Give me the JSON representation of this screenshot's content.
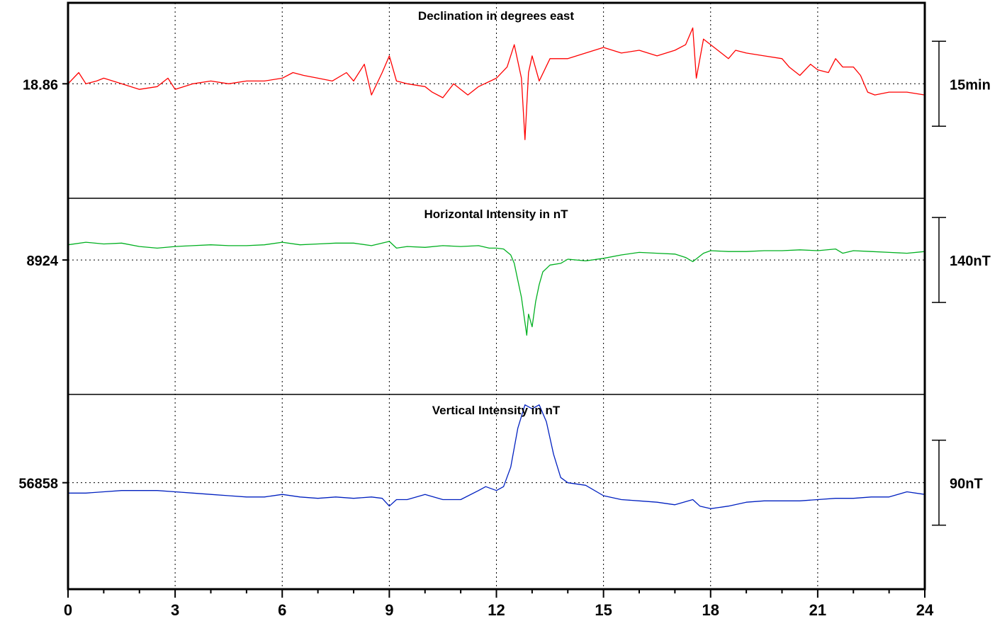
{
  "chart_data": {
    "type": "line",
    "x_ticks": [
      "0",
      "3",
      "6",
      "9",
      "12",
      "15",
      "18",
      "21",
      "24"
    ],
    "xlim": [
      0,
      24
    ],
    "grid": true,
    "panels": [
      {
        "title": "Declination in degrees east",
        "baseline_label": "18.86",
        "scale_label": "15min",
        "color": "#ff0000",
        "baseline_value": 18.86,
        "ylim": [
          18.45,
          19.16
        ],
        "points": [
          [
            0.0,
            18.86
          ],
          [
            0.3,
            18.9
          ],
          [
            0.5,
            18.86
          ],
          [
            0.8,
            18.87
          ],
          [
            1.0,
            18.88
          ],
          [
            1.5,
            18.86
          ],
          [
            2.0,
            18.84
          ],
          [
            2.5,
            18.85
          ],
          [
            2.8,
            18.88
          ],
          [
            3.0,
            18.84
          ],
          [
            3.5,
            18.86
          ],
          [
            4.0,
            18.87
          ],
          [
            4.5,
            18.86
          ],
          [
            5.0,
            18.87
          ],
          [
            5.5,
            18.87
          ],
          [
            6.0,
            18.88
          ],
          [
            6.3,
            18.9
          ],
          [
            6.6,
            18.89
          ],
          [
            7.0,
            18.88
          ],
          [
            7.4,
            18.87
          ],
          [
            7.8,
            18.9
          ],
          [
            8.0,
            18.87
          ],
          [
            8.3,
            18.93
          ],
          [
            8.5,
            18.82
          ],
          [
            8.8,
            18.9
          ],
          [
            9.0,
            18.96
          ],
          [
            9.2,
            18.87
          ],
          [
            9.5,
            18.86
          ],
          [
            10.0,
            18.85
          ],
          [
            10.2,
            18.83
          ],
          [
            10.5,
            18.81
          ],
          [
            10.8,
            18.86
          ],
          [
            11.0,
            18.84
          ],
          [
            11.2,
            18.82
          ],
          [
            11.5,
            18.85
          ],
          [
            12.0,
            18.88
          ],
          [
            12.3,
            18.92
          ],
          [
            12.5,
            19.0
          ],
          [
            12.7,
            18.88
          ],
          [
            12.8,
            18.66
          ],
          [
            12.9,
            18.9
          ],
          [
            13.0,
            18.96
          ],
          [
            13.2,
            18.87
          ],
          [
            13.5,
            18.95
          ],
          [
            14.0,
            18.95
          ],
          [
            14.5,
            18.97
          ],
          [
            15.0,
            18.99
          ],
          [
            15.5,
            18.97
          ],
          [
            16.0,
            18.98
          ],
          [
            16.5,
            18.96
          ],
          [
            17.0,
            18.98
          ],
          [
            17.3,
            19.0
          ],
          [
            17.5,
            19.06
          ],
          [
            17.6,
            18.88
          ],
          [
            17.8,
            19.02
          ],
          [
            18.0,
            19.0
          ],
          [
            18.3,
            18.97
          ],
          [
            18.5,
            18.95
          ],
          [
            18.7,
            18.98
          ],
          [
            19.0,
            18.97
          ],
          [
            19.5,
            18.96
          ],
          [
            20.0,
            18.95
          ],
          [
            20.2,
            18.92
          ],
          [
            20.5,
            18.89
          ],
          [
            20.8,
            18.93
          ],
          [
            21.0,
            18.91
          ],
          [
            21.3,
            18.9
          ],
          [
            21.5,
            18.95
          ],
          [
            21.7,
            18.92
          ],
          [
            22.0,
            18.92
          ],
          [
            22.2,
            18.89
          ],
          [
            22.4,
            18.83
          ],
          [
            22.6,
            18.82
          ],
          [
            23.0,
            18.83
          ],
          [
            23.5,
            18.83
          ],
          [
            24.0,
            18.82
          ]
        ]
      },
      {
        "title": "Horizontal Intensity in nT",
        "baseline_label": "8924",
        "scale_label": "140nT",
        "color": "#00b020",
        "baseline_value": 8924,
        "ylim": [
          8765,
          8997
        ],
        "points": [
          [
            0.0,
            8942
          ],
          [
            0.5,
            8945
          ],
          [
            1.0,
            8943
          ],
          [
            1.5,
            8944
          ],
          [
            2.0,
            8940
          ],
          [
            2.5,
            8938
          ],
          [
            3.0,
            8940
          ],
          [
            3.5,
            8941
          ],
          [
            4.0,
            8942
          ],
          [
            4.5,
            8941
          ],
          [
            5.0,
            8941
          ],
          [
            5.5,
            8942
          ],
          [
            6.0,
            8945
          ],
          [
            6.5,
            8942
          ],
          [
            7.0,
            8943
          ],
          [
            7.5,
            8944
          ],
          [
            8.0,
            8944
          ],
          [
            8.5,
            8941
          ],
          [
            9.0,
            8946
          ],
          [
            9.2,
            8938
          ],
          [
            9.5,
            8940
          ],
          [
            10.0,
            8939
          ],
          [
            10.5,
            8941
          ],
          [
            11.0,
            8940
          ],
          [
            11.5,
            8941
          ],
          [
            11.8,
            8938
          ],
          [
            12.0,
            8938
          ],
          [
            12.2,
            8937
          ],
          [
            12.4,
            8930
          ],
          [
            12.5,
            8920
          ],
          [
            12.6,
            8900
          ],
          [
            12.7,
            8880
          ],
          [
            12.8,
            8850
          ],
          [
            12.85,
            8835
          ],
          [
            12.9,
            8860
          ],
          [
            13.0,
            8845
          ],
          [
            13.1,
            8875
          ],
          [
            13.2,
            8895
          ],
          [
            13.3,
            8910
          ],
          [
            13.5,
            8918
          ],
          [
            13.8,
            8920
          ],
          [
            14.0,
            8925
          ],
          [
            14.5,
            8923
          ],
          [
            15.0,
            8926
          ],
          [
            15.5,
            8930
          ],
          [
            16.0,
            8933
          ],
          [
            16.5,
            8932
          ],
          [
            17.0,
            8931
          ],
          [
            17.3,
            8927
          ],
          [
            17.5,
            8922
          ],
          [
            17.8,
            8932
          ],
          [
            18.0,
            8935
          ],
          [
            18.5,
            8934
          ],
          [
            19.0,
            8934
          ],
          [
            19.5,
            8935
          ],
          [
            20.0,
            8935
          ],
          [
            20.5,
            8936
          ],
          [
            21.0,
            8935
          ],
          [
            21.5,
            8937
          ],
          [
            21.7,
            8932
          ],
          [
            22.0,
            8935
          ],
          [
            22.5,
            8934
          ],
          [
            23.0,
            8933
          ],
          [
            23.5,
            8932
          ],
          [
            24.0,
            8934
          ]
        ]
      },
      {
        "title": "Vertical Intensity in nT",
        "baseline_label": "56858",
        "scale_label": "90nT",
        "color": "#0020c0",
        "baseline_value": 56858,
        "ylim": [
          56776,
          56926
        ],
        "points": [
          [
            0.0,
            56850
          ],
          [
            0.5,
            56850
          ],
          [
            1.0,
            56851
          ],
          [
            1.5,
            56852
          ],
          [
            2.0,
            56852
          ],
          [
            2.5,
            56852
          ],
          [
            3.0,
            56851
          ],
          [
            3.5,
            56850
          ],
          [
            4.0,
            56849
          ],
          [
            4.5,
            56848
          ],
          [
            5.0,
            56847
          ],
          [
            5.5,
            56847
          ],
          [
            6.0,
            56849
          ],
          [
            6.5,
            56847
          ],
          [
            7.0,
            56846
          ],
          [
            7.5,
            56847
          ],
          [
            8.0,
            56846
          ],
          [
            8.5,
            56847
          ],
          [
            8.8,
            56846
          ],
          [
            9.0,
            56840
          ],
          [
            9.2,
            56845
          ],
          [
            9.5,
            56845
          ],
          [
            10.0,
            56849
          ],
          [
            10.5,
            56845
          ],
          [
            11.0,
            56845
          ],
          [
            11.5,
            56852
          ],
          [
            11.7,
            56855
          ],
          [
            12.0,
            56852
          ],
          [
            12.2,
            56855
          ],
          [
            12.4,
            56870
          ],
          [
            12.6,
            56900
          ],
          [
            12.8,
            56918
          ],
          [
            13.0,
            56915
          ],
          [
            13.2,
            56918
          ],
          [
            13.4,
            56905
          ],
          [
            13.6,
            56880
          ],
          [
            13.8,
            56862
          ],
          [
            14.0,
            56858
          ],
          [
            14.5,
            56856
          ],
          [
            15.0,
            56848
          ],
          [
            15.5,
            56845
          ],
          [
            16.0,
            56844
          ],
          [
            16.5,
            56843
          ],
          [
            17.0,
            56841
          ],
          [
            17.5,
            56845
          ],
          [
            17.7,
            56840
          ],
          [
            18.0,
            56838
          ],
          [
            18.5,
            56840
          ],
          [
            19.0,
            56843
          ],
          [
            19.5,
            56844
          ],
          [
            20.0,
            56844
          ],
          [
            20.5,
            56844
          ],
          [
            21.0,
            56845
          ],
          [
            21.5,
            56846
          ],
          [
            22.0,
            56846
          ],
          [
            22.5,
            56847
          ],
          [
            23.0,
            56847
          ],
          [
            23.5,
            56851
          ],
          [
            24.0,
            56849
          ]
        ]
      }
    ]
  }
}
